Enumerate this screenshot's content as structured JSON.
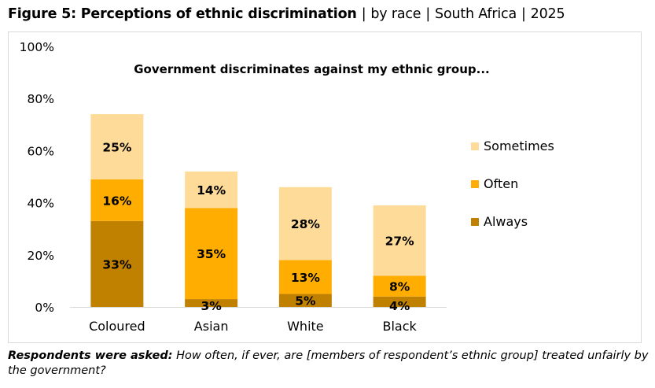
{
  "header": {
    "figure_title": "Figure 5: Perceptions of ethnic discrimination",
    "meta": [
      "by race",
      "South Africa",
      "2025"
    ]
  },
  "footnote": {
    "lead": "Respondents were asked:",
    "text": "How often, if ever, are [members of respondent’s ethnic group] treated unfairly by the government?"
  },
  "chart_data": {
    "type": "bar",
    "stacked": true,
    "title": "Government discriminates against my ethnic group...",
    "categories": [
      "Coloured",
      "Asian",
      "White",
      "Black"
    ],
    "series": [
      {
        "name": "Always",
        "values": [
          33,
          3,
          5,
          4
        ],
        "color": "#c08000"
      },
      {
        "name": "Often",
        "values": [
          16,
          35,
          13,
          8
        ],
        "color": "#ffad00"
      },
      {
        "name": "Sometimes",
        "values": [
          25,
          14,
          28,
          27
        ],
        "color": "#ffdb99"
      }
    ],
    "data_labels": [
      [
        "33%",
        "3%",
        "5%",
        "4%"
      ],
      [
        "16%",
        "35%",
        "13%",
        "8%"
      ],
      [
        "25%",
        "14%",
        "28%",
        "27%"
      ]
    ],
    "ylim": [
      0,
      100
    ],
    "yticks": [
      0,
      20,
      40,
      60,
      80,
      100
    ],
    "ytick_labels": [
      "0%",
      "20%",
      "40%",
      "60%",
      "80%",
      "100%"
    ],
    "grid": false,
    "legend_position": "right",
    "legend_order": [
      "Sometimes",
      "Often",
      "Always"
    ]
  }
}
